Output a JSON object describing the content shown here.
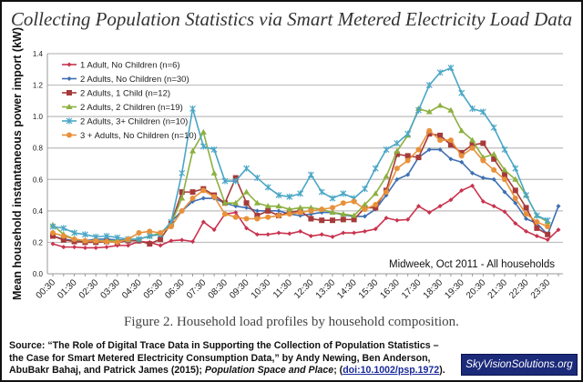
{
  "title": "Collecting Population Statistics via Smart Metered Electricity Load Data",
  "caption": "Figure 2.  Household load profiles by household composition.",
  "source": {
    "prefix": "Source:  “The Role of Digital Trace Data in Supporting the Collection of Population Statistics – the Case for Smart Metered Electricity Consumption Data,” by Andy Newing, Ben Anderson, AbuBakr Bahaj, and Patrick James (2015); ",
    "journal": "Population Space and Place",
    "sep": "; (",
    "doi": "doi:10.1002/psp.1972",
    "suffix": ")."
  },
  "logo_text": "SkyVisionSolutions.org",
  "chart_data": {
    "type": "line",
    "title": "",
    "annotation": "Midweek, Oct 2011 - All households",
    "xlabel": "",
    "ylabel": "Mean household instantaneous power import (kW)",
    "ylim": [
      0,
      1.4
    ],
    "yticks": [
      "0.0",
      "0.2",
      "0.4",
      "0.6",
      "0.8",
      "1.0",
      "1.2",
      "1.4"
    ],
    "xtick_labels": [
      "00:30",
      "01:30",
      "02:30",
      "03:30",
      "04:30",
      "05:30",
      "06:30",
      "07:30",
      "08:30",
      "09:30",
      "10:30",
      "11:30",
      "12:30",
      "13:30",
      "14:30",
      "15:30",
      "16:30",
      "17:30",
      "18:30",
      "19:30",
      "20:30",
      "21:30",
      "22:30",
      "23:30"
    ],
    "x": [
      "00:30",
      "01:00",
      "01:30",
      "02:00",
      "02:30",
      "03:00",
      "03:30",
      "04:00",
      "04:30",
      "05:00",
      "05:30",
      "06:00",
      "06:30",
      "07:00",
      "07:30",
      "08:00",
      "08:30",
      "09:00",
      "09:30",
      "10:00",
      "10:30",
      "11:00",
      "11:30",
      "12:00",
      "12:30",
      "13:00",
      "13:30",
      "14:00",
      "14:30",
      "15:00",
      "15:30",
      "16:00",
      "16:30",
      "17:00",
      "17:30",
      "18:00",
      "18:30",
      "19:00",
      "19:30",
      "20:00",
      "20:30",
      "21:00",
      "21:30",
      "22:00",
      "22:30",
      "23:00",
      "23:30",
      "24:00"
    ],
    "grid": true,
    "legend_position": "top-left",
    "series": [
      {
        "name": "1 Adult, No Children (n=6)",
        "color": "#c9334f",
        "marker": "diamond",
        "values": [
          0.19,
          0.17,
          0.17,
          0.165,
          0.165,
          0.17,
          0.18,
          0.18,
          0.205,
          0.2,
          0.18,
          0.21,
          0.215,
          0.205,
          0.33,
          0.28,
          0.38,
          0.39,
          0.29,
          0.25,
          0.25,
          0.26,
          0.255,
          0.27,
          0.24,
          0.25,
          0.235,
          0.26,
          0.26,
          0.27,
          0.285,
          0.355,
          0.34,
          0.345,
          0.43,
          0.39,
          0.43,
          0.47,
          0.53,
          0.56,
          0.46,
          0.43,
          0.395,
          0.32,
          0.27,
          0.24,
          0.216,
          0.28
        ]
      },
      {
        "name": "2 Adults, No Children (n=30)",
        "color": "#3d6fb2",
        "marker": "diamond",
        "values": [
          0.24,
          0.22,
          0.21,
          0.21,
          0.22,
          0.22,
          0.215,
          0.215,
          0.22,
          0.24,
          0.25,
          0.33,
          0.4,
          0.46,
          0.48,
          0.48,
          0.45,
          0.43,
          0.42,
          0.4,
          0.4,
          0.4,
          0.38,
          0.37,
          0.38,
          0.39,
          0.39,
          0.375,
          0.365,
          0.365,
          0.41,
          0.5,
          0.6,
          0.63,
          0.74,
          0.79,
          0.79,
          0.73,
          0.71,
          0.64,
          0.61,
          0.6,
          0.52,
          0.45,
          0.35,
          0.32,
          0.25,
          0.43
        ]
      },
      {
        "name": "2 Adults, 1 Child (n=12)",
        "color": "#a63a3a",
        "marker": "square",
        "values": [
          0.24,
          0.215,
          0.205,
          0.2,
          0.2,
          0.205,
          0.2,
          0.21,
          0.21,
          0.19,
          0.22,
          0.32,
          0.52,
          0.52,
          0.54,
          0.5,
          0.45,
          0.61,
          0.45,
          0.37,
          0.4,
          0.37,
          0.39,
          0.4,
          0.35,
          0.34,
          0.34,
          0.345,
          0.345,
          0.42,
          0.42,
          0.53,
          0.76,
          0.75,
          0.74,
          0.89,
          0.88,
          0.82,
          0.77,
          0.82,
          0.83,
          0.73,
          0.63,
          0.53,
          0.42,
          0.29,
          0.25,
          null
        ]
      },
      {
        "name": "2 Adults, 2 Children (n=19)",
        "color": "#8db040",
        "marker": "triangle",
        "values": [
          0.31,
          0.25,
          0.22,
          0.21,
          0.21,
          0.21,
          0.21,
          0.215,
          0.22,
          0.24,
          0.26,
          0.32,
          0.48,
          0.78,
          0.9,
          0.64,
          0.45,
          0.45,
          0.52,
          0.45,
          0.43,
          0.43,
          0.41,
          0.42,
          0.42,
          0.41,
          0.39,
          0.38,
          0.37,
          0.44,
          0.51,
          0.62,
          0.78,
          0.88,
          1.05,
          1.03,
          1.07,
          1.04,
          0.91,
          0.85,
          0.74,
          0.76,
          0.66,
          0.6,
          0.5,
          0.37,
          0.33,
          null
        ]
      },
      {
        "name": "2 Adults, 3+ Children (n=10)",
        "color": "#4aa6c6",
        "marker": "star",
        "values": [
          0.3,
          0.29,
          0.26,
          0.25,
          0.235,
          0.24,
          0.23,
          0.22,
          0.22,
          0.24,
          0.25,
          0.33,
          0.64,
          1.05,
          0.81,
          0.79,
          0.59,
          0.59,
          0.67,
          0.61,
          0.55,
          0.5,
          0.49,
          0.51,
          0.63,
          0.52,
          0.48,
          0.51,
          0.48,
          0.54,
          0.67,
          0.79,
          0.83,
          0.89,
          1.04,
          1.2,
          1.28,
          1.31,
          1.15,
          1.05,
          1.03,
          0.93,
          0.79,
          0.67,
          0.5,
          0.37,
          0.34,
          null
        ]
      },
      {
        "name": "3 + Adults, No Children (n=10)",
        "color": "#e8913a",
        "marker": "circle",
        "values": [
          0.26,
          0.24,
          0.22,
          0.21,
          0.21,
          0.205,
          0.2,
          0.22,
          0.26,
          0.27,
          0.26,
          0.3,
          0.4,
          0.48,
          0.53,
          0.49,
          0.38,
          0.36,
          0.35,
          0.35,
          0.36,
          0.37,
          0.38,
          0.39,
          0.4,
          0.41,
          0.42,
          0.45,
          0.46,
          0.41,
          0.44,
          0.52,
          0.67,
          0.72,
          0.79,
          0.91,
          0.85,
          0.85,
          0.75,
          0.8,
          0.72,
          0.66,
          0.6,
          0.48,
          0.38,
          0.33,
          0.3,
          null
        ]
      }
    ]
  }
}
